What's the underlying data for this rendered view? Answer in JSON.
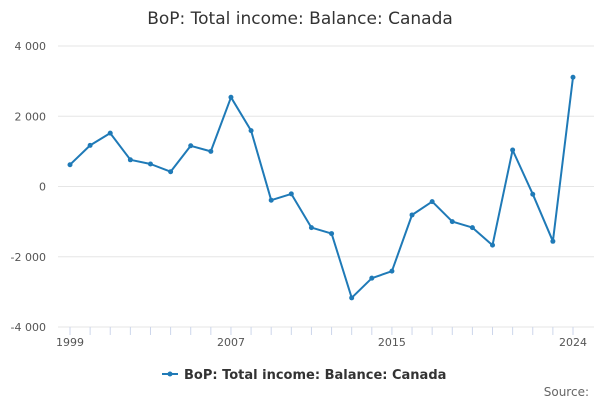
{
  "chart_data": {
    "type": "line",
    "title": "BoP: Total income: Balance: Canada",
    "xlabel": "",
    "ylabel": "",
    "xlim": [
      1999,
      2024
    ],
    "ylim": [
      -4000,
      4000
    ],
    "yticks": [
      -4000,
      -2000,
      0,
      2000,
      4000
    ],
    "ytick_labels": [
      "-4 000",
      "-2 000",
      "0",
      "2 000",
      "4 000"
    ],
    "xtick_labels": [
      "1999",
      "2007",
      "2015",
      "2024"
    ],
    "grid": true,
    "legend_position": "bottom",
    "x": [
      1999,
      2000,
      2001,
      2002,
      2003,
      2004,
      2005,
      2006,
      2007,
      2008,
      2009,
      2010,
      2011,
      2012,
      2013,
      2014,
      2015,
      2016,
      2017,
      2018,
      2019,
      2020,
      2021,
      2022,
      2023,
      2024
    ],
    "series": [
      {
        "name": "BoP: Total income: Balance: Canada",
        "color": "#1f7ab7",
        "values": [
          620,
          1170,
          1520,
          760,
          640,
          420,
          1160,
          1000,
          2540,
          1590,
          -390,
          -210,
          -1170,
          -1340,
          -3170,
          -2610,
          -2410,
          -810,
          -430,
          -1000,
          -1170,
          -1670,
          1040,
          -220,
          -1560,
          3110
        ]
      }
    ],
    "source_label": "Source:"
  }
}
